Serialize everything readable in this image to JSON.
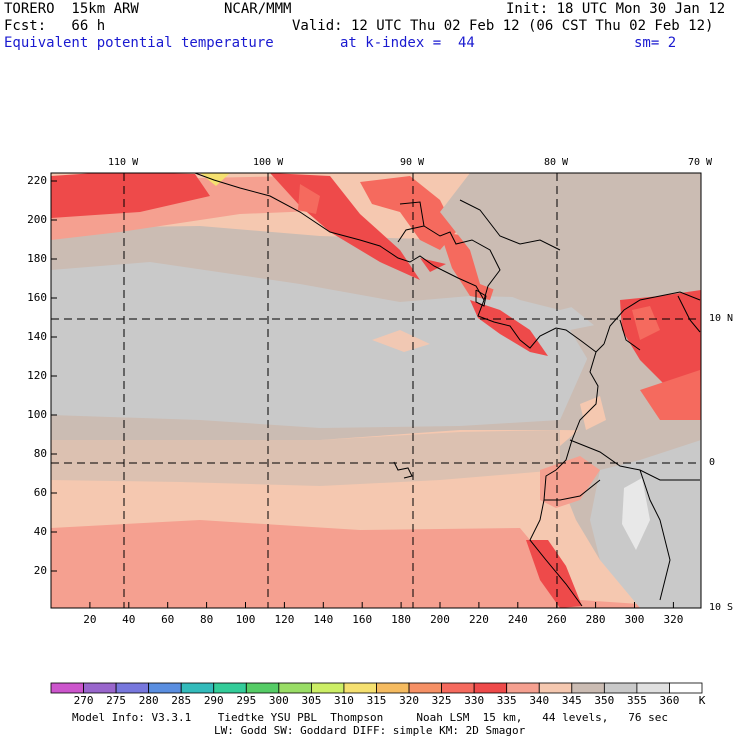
{
  "header": {
    "model": "TORERO  15km ARW",
    "center": "NCAR/MMM",
    "init": "Init: 18 UTC Mon 30 Jan 12",
    "fcst": "Fcst:   66 h",
    "valid": "Valid: 12 UTC Thu 02 Feb 12 (06 CST Thu 02 Feb 12)",
    "field": "Equivalent potential temperature",
    "level": "at k-index =  44",
    "smooth": "sm= 2"
  },
  "map": {
    "top_labels": [
      "110 W",
      "100 W",
      "90 W",
      "80 W",
      "70 W"
    ],
    "right_labels": [
      "10 N",
      "0",
      "10 S"
    ],
    "y_ticks": [
      "220",
      "200",
      "180",
      "160",
      "140",
      "120",
      "100",
      "80",
      "60",
      "40",
      "20"
    ],
    "x_ticks": [
      "20",
      "40",
      "60",
      "80",
      "100",
      "120",
      "140",
      "160",
      "180",
      "200",
      "220",
      "240",
      "260",
      "280",
      "300",
      "320"
    ]
  },
  "colorbar": {
    "labels": [
      "270",
      "275",
      "280",
      "285",
      "290",
      "295",
      "300",
      "305",
      "310",
      "315",
      "320",
      "325",
      "330",
      "335",
      "340",
      "345",
      "350",
      "355",
      "360"
    ],
    "unit": "K",
    "colors": [
      "#cc55cc",
      "#9966cc",
      "#7777dd",
      "#5a8ee0",
      "#33bbbb",
      "#33cc99",
      "#55cc66",
      "#99dd66",
      "#ccee66",
      "#f5e070",
      "#f5bb60",
      "#f59065",
      "#f56a5e",
      "#ee4a4a",
      "#f5a090",
      "#f5c8b0",
      "#cbbcb3",
      "#c9c9c9",
      "#e0e0e0",
      "#ffffff"
    ]
  },
  "footer": {
    "line1": "Model Info: V3.3.1    Tiedtke YSU PBL  Thompson     Noah LSM  15 km,   44 levels,   76 sec",
    "line2": "LW: Godd SW: Goddard DIFF: simple KM: 2D Smagor"
  }
}
